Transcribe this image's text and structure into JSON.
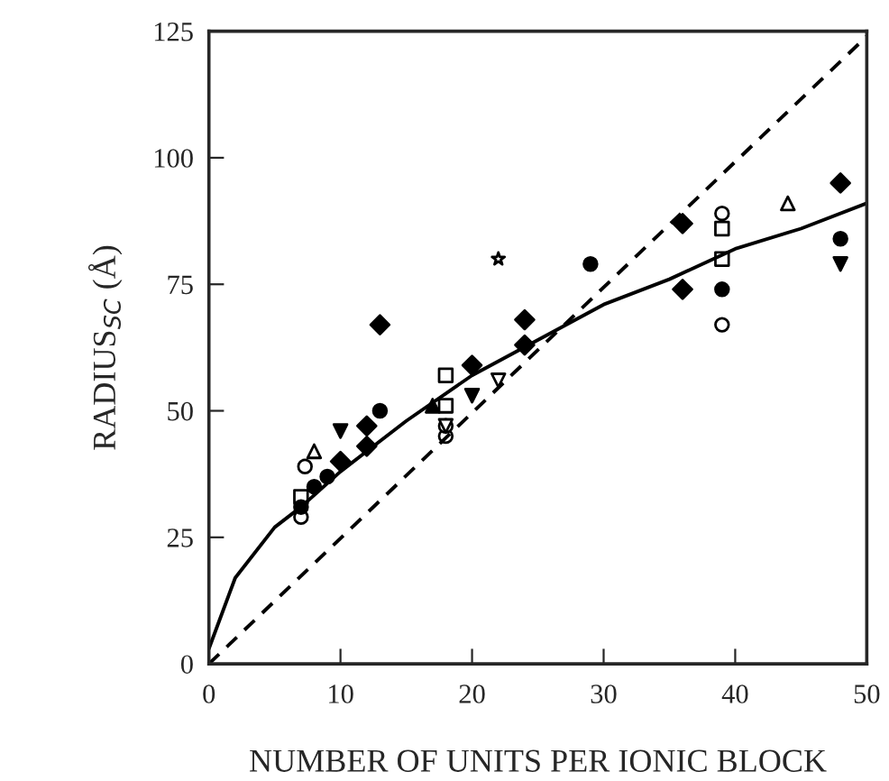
{
  "chart_data": {
    "type": "scatter",
    "xlabel": "NUMBER OF UNITS PER IONIC BLOCK",
    "ylabel": "RADIUS$_{SC}$ (Å)",
    "xlim": [
      0,
      50
    ],
    "ylim": [
      0,
      125
    ],
    "xticks": [
      0,
      10,
      20,
      30,
      40,
      50
    ],
    "yticks": [
      0,
      25,
      50,
      75,
      100,
      125
    ],
    "grid": false,
    "legend": false,
    "series": [
      {
        "marker": "circle",
        "color": "#ffffff",
        "x": [
          7,
          7.3,
          18,
          18,
          39,
          39
        ],
        "values": [
          29,
          39,
          45,
          47,
          67,
          89
        ]
      },
      {
        "marker": "square",
        "color": "#ffffff",
        "x": [
          7,
          18,
          18,
          39,
          39
        ],
        "values": [
          33,
          57,
          51,
          86,
          80
        ]
      },
      {
        "marker": "triangle",
        "color": "#ffffff",
        "x": [
          8,
          44
        ],
        "values": [
          42,
          91
        ]
      },
      {
        "marker": "triangle_down",
        "color": "#ffffff",
        "x": [
          18,
          22
        ],
        "values": [
          47,
          56
        ]
      },
      {
        "marker": "triangle_down",
        "color": "#000000",
        "x": [
          10,
          20,
          48
        ],
        "values": [
          46,
          53,
          79
        ]
      },
      {
        "marker": "triangle",
        "color": "#000000",
        "x": [
          17
        ],
        "values": [
          51
        ]
      },
      {
        "marker": "circle",
        "color": "#000000",
        "x": [
          7,
          8,
          9,
          13,
          29,
          39,
          48
        ],
        "values": [
          31,
          35,
          37,
          50,
          79,
          74,
          84
        ]
      },
      {
        "marker": "diamond",
        "color": "#000000",
        "x": [
          10,
          12,
          12,
          13,
          20,
          24,
          24,
          36,
          36,
          48
        ],
        "values": [
          40,
          43,
          47,
          67,
          59,
          68,
          63,
          87,
          74,
          95
        ]
      },
      {
        "marker": "star",
        "color": "#ffffff",
        "x": [
          22
        ],
        "values": [
          80
        ]
      },
      {
        "type": "line",
        "marker": "none",
        "line_style": "solid",
        "color": "#000000",
        "x": [
          0,
          2,
          5,
          7,
          10,
          15,
          20,
          25,
          30,
          35,
          40,
          45,
          50
        ],
        "values": [
          3,
          17,
          27,
          31,
          38,
          48,
          57,
          64,
          71,
          76,
          82,
          86,
          91
        ]
      },
      {
        "type": "line",
        "marker": "none",
        "line_style": "dashed",
        "color": "#000000",
        "x": [
          0,
          50
        ],
        "values": [
          0,
          124
        ]
      }
    ]
  }
}
